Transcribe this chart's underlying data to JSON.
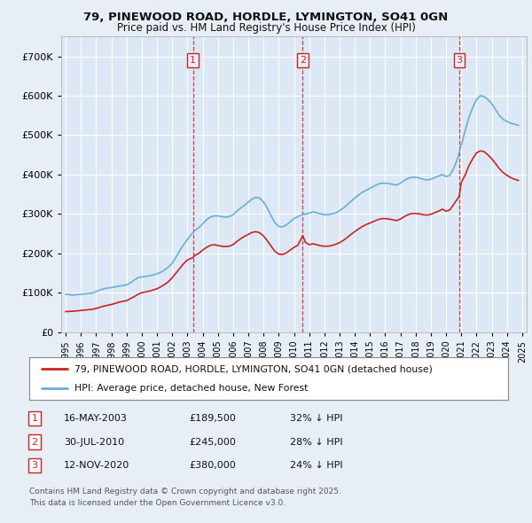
{
  "title1": "79, PINEWOOD ROAD, HORDLE, LYMINGTON, SO41 0GN",
  "title2": "Price paid vs. HM Land Registry's House Price Index (HPI)",
  "ylim": [
    0,
    750000
  ],
  "yticks": [
    0,
    100000,
    200000,
    300000,
    400000,
    500000,
    600000,
    700000
  ],
  "ytick_labels": [
    "£0",
    "£100K",
    "£200K",
    "£300K",
    "£400K",
    "£500K",
    "£600K",
    "£700K"
  ],
  "xlim_min": 1994.7,
  "xlim_max": 2025.3,
  "bg_color": "#e8eef5",
  "plot_bg_color": "#dce8f5",
  "grid_color": "#ffffff",
  "hpi_color": "#6aaed6",
  "price_color": "#cc2222",
  "transactions": [
    {
      "num": 1,
      "date": "16-MAY-2003",
      "price": 189500,
      "pct": "32%",
      "x_year": 2003.37
    },
    {
      "num": 2,
      "date": "30-JUL-2010",
      "price": 245000,
      "pct": "28%",
      "x_year": 2010.58
    },
    {
      "num": 3,
      "date": "12-NOV-2020",
      "price": 380000,
      "pct": "24%",
      "x_year": 2020.87
    }
  ],
  "legend_line1": "79, PINEWOOD ROAD, HORDLE, LYMINGTON, SO41 0GN (detached house)",
  "legend_line2": "HPI: Average price, detached house, New Forest",
  "footnote1": "Contains HM Land Registry data © Crown copyright and database right 2025.",
  "footnote2": "This data is licensed under the Open Government Licence v3.0.",
  "hpi_data_x": [
    1995.0,
    1995.25,
    1995.5,
    1995.75,
    1996.0,
    1996.25,
    1996.5,
    1996.75,
    1997.0,
    1997.25,
    1997.5,
    1997.75,
    1998.0,
    1998.25,
    1998.5,
    1998.75,
    1999.0,
    1999.25,
    1999.5,
    1999.75,
    2000.0,
    2000.25,
    2000.5,
    2000.75,
    2001.0,
    2001.25,
    2001.5,
    2001.75,
    2002.0,
    2002.25,
    2002.5,
    2002.75,
    2003.0,
    2003.25,
    2003.5,
    2003.75,
    2004.0,
    2004.25,
    2004.5,
    2004.75,
    2005.0,
    2005.25,
    2005.5,
    2005.75,
    2006.0,
    2006.25,
    2006.5,
    2006.75,
    2007.0,
    2007.25,
    2007.5,
    2007.75,
    2008.0,
    2008.25,
    2008.5,
    2008.75,
    2009.0,
    2009.25,
    2009.5,
    2009.75,
    2010.0,
    2010.25,
    2010.5,
    2010.75,
    2011.0,
    2011.25,
    2011.5,
    2011.75,
    2012.0,
    2012.25,
    2012.5,
    2012.75,
    2013.0,
    2013.25,
    2013.5,
    2013.75,
    2014.0,
    2014.25,
    2014.5,
    2014.75,
    2015.0,
    2015.25,
    2015.5,
    2015.75,
    2016.0,
    2016.25,
    2016.5,
    2016.75,
    2017.0,
    2017.25,
    2017.5,
    2017.75,
    2018.0,
    2018.25,
    2018.5,
    2018.75,
    2019.0,
    2019.25,
    2019.5,
    2019.75,
    2020.0,
    2020.25,
    2020.5,
    2020.75,
    2021.0,
    2021.25,
    2021.5,
    2021.75,
    2022.0,
    2022.25,
    2022.5,
    2022.75,
    2023.0,
    2023.25,
    2023.5,
    2023.75,
    2024.0,
    2024.25,
    2024.5,
    2024.75
  ],
  "hpi_data_y": [
    96000,
    95000,
    94000,
    95000,
    96000,
    97000,
    98000,
    99000,
    103000,
    107000,
    110000,
    112000,
    113000,
    115000,
    117000,
    118000,
    120000,
    125000,
    132000,
    138000,
    140000,
    141000,
    143000,
    145000,
    148000,
    152000,
    158000,
    165000,
    175000,
    190000,
    207000,
    222000,
    235000,
    248000,
    258000,
    265000,
    275000,
    285000,
    292000,
    295000,
    295000,
    293000,
    292000,
    293000,
    298000,
    307000,
    315000,
    322000,
    330000,
    338000,
    342000,
    340000,
    330000,
    315000,
    295000,
    278000,
    268000,
    267000,
    272000,
    280000,
    288000,
    293000,
    297000,
    300000,
    302000,
    305000,
    303000,
    300000,
    298000,
    298000,
    300000,
    303000,
    308000,
    315000,
    323000,
    332000,
    340000,
    348000,
    355000,
    360000,
    365000,
    370000,
    375000,
    378000,
    378000,
    377000,
    375000,
    373000,
    378000,
    385000,
    390000,
    393000,
    393000,
    391000,
    388000,
    386000,
    388000,
    392000,
    396000,
    400000,
    395000,
    398000,
    415000,
    440000,
    475000,
    510000,
    545000,
    570000,
    590000,
    600000,
    598000,
    590000,
    580000,
    565000,
    550000,
    540000,
    535000,
    530000,
    528000,
    525000
  ],
  "price_data_x": [
    1995.0,
    1995.25,
    1995.5,
    1995.75,
    1996.0,
    1996.25,
    1996.5,
    1996.75,
    1997.0,
    1997.25,
    1997.5,
    1997.75,
    1998.0,
    1998.25,
    1998.5,
    1998.75,
    1999.0,
    1999.25,
    1999.5,
    1999.75,
    2000.0,
    2000.25,
    2000.5,
    2000.75,
    2001.0,
    2001.25,
    2001.5,
    2001.75,
    2002.0,
    2002.25,
    2002.5,
    2002.75,
    2003.0,
    2003.37,
    2003.5,
    2003.75,
    2004.0,
    2004.25,
    2004.5,
    2004.75,
    2005.0,
    2005.25,
    2005.5,
    2005.75,
    2006.0,
    2006.25,
    2006.5,
    2006.75,
    2007.0,
    2007.25,
    2007.5,
    2007.75,
    2008.0,
    2008.25,
    2008.5,
    2008.75,
    2009.0,
    2009.25,
    2009.5,
    2009.75,
    2010.0,
    2010.25,
    2010.58,
    2010.75,
    2011.0,
    2011.25,
    2011.5,
    2011.75,
    2012.0,
    2012.25,
    2012.5,
    2012.75,
    2013.0,
    2013.25,
    2013.5,
    2013.75,
    2014.0,
    2014.25,
    2014.5,
    2014.75,
    2015.0,
    2015.25,
    2015.5,
    2015.75,
    2016.0,
    2016.25,
    2016.5,
    2016.75,
    2017.0,
    2017.25,
    2017.5,
    2017.75,
    2018.0,
    2018.25,
    2018.5,
    2018.75,
    2019.0,
    2019.25,
    2019.5,
    2019.75,
    2020.0,
    2020.25,
    2020.5,
    2020.87,
    2021.0,
    2021.25,
    2021.5,
    2021.75,
    2022.0,
    2022.25,
    2022.5,
    2022.75,
    2023.0,
    2023.25,
    2023.5,
    2023.75,
    2024.0,
    2024.25,
    2024.5,
    2024.75
  ],
  "price_data_y": [
    52000,
    52500,
    53000,
    54000,
    55000,
    56000,
    57000,
    58000,
    60000,
    63000,
    66000,
    68000,
    70000,
    73000,
    76000,
    78000,
    80000,
    85000,
    90000,
    96000,
    100000,
    102000,
    104000,
    107000,
    110000,
    115000,
    121000,
    128000,
    138000,
    150000,
    162000,
    174000,
    183000,
    189500,
    195000,
    200000,
    208000,
    215000,
    220000,
    222000,
    220000,
    218000,
    217000,
    218000,
    222000,
    230000,
    237000,
    243000,
    248000,
    253000,
    255000,
    252000,
    244000,
    232000,
    218000,
    205000,
    198000,
    197000,
    201000,
    208000,
    215000,
    220000,
    245000,
    228000,
    222000,
    224000,
    222000,
    219000,
    218000,
    218000,
    220000,
    223000,
    227000,
    233000,
    240000,
    248000,
    255000,
    262000,
    268000,
    273000,
    277000,
    281000,
    285000,
    288000,
    288000,
    287000,
    285000,
    283000,
    287000,
    293000,
    298000,
    301000,
    301000,
    300000,
    298000,
    297000,
    299000,
    303000,
    307000,
    312000,
    307000,
    310000,
    324000,
    345000,
    380000,
    398000,
    422000,
    440000,
    455000,
    460000,
    458000,
    450000,
    440000,
    428000,
    415000,
    405000,
    398000,
    392000,
    388000,
    385000
  ]
}
